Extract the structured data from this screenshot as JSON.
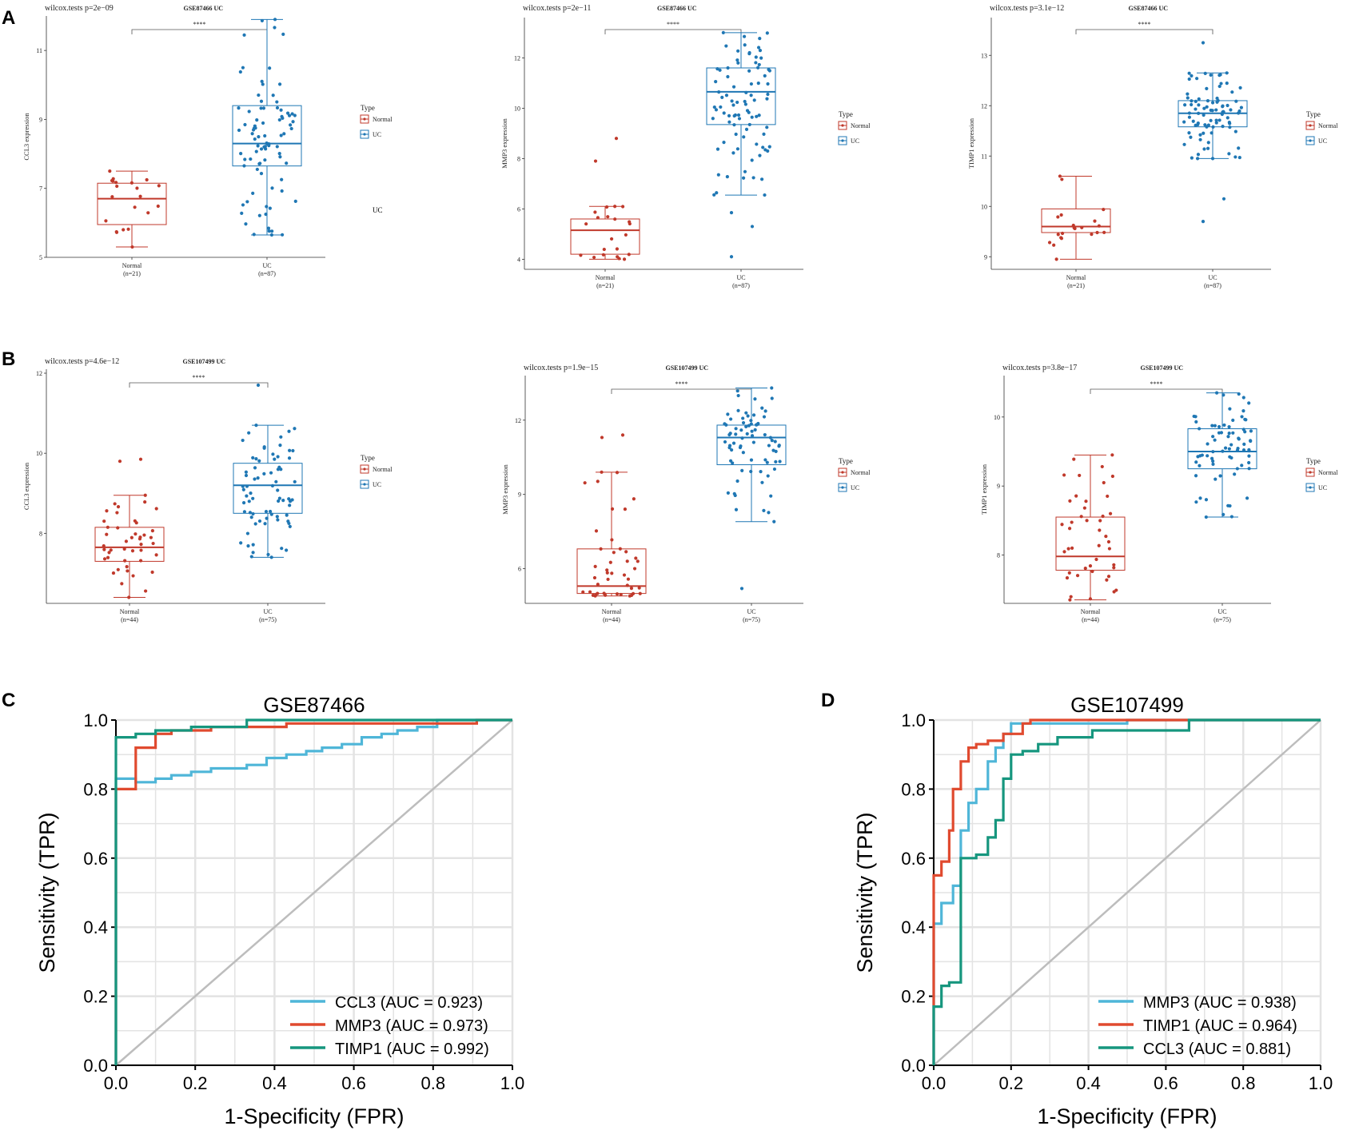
{
  "colors": {
    "normal": "#c0392b",
    "uc": "#1f77b4",
    "ccl3_roc": "#4fb6d8",
    "mmp3_roc": "#e04a2f",
    "timp1_roc": "#16967e",
    "diag": "#bdbdbd",
    "grid": "#e3e3e3"
  },
  "panel_labels": {
    "A": "A",
    "B": "B",
    "C": "C",
    "D": "D"
  },
  "legend": {
    "title": "Type",
    "normal": "Normal",
    "uc": "UC"
  },
  "stray_label": "UC",
  "chart_data": [
    {
      "id": "a1",
      "type": "box",
      "title": "GSE87466 UC",
      "test": "wilcox.tests p=2e−09",
      "signif": "****",
      "ylabel": "CCL3 expression",
      "ylim": [
        5,
        12
      ],
      "yticks": [
        5,
        7,
        9,
        11
      ],
      "groups": [
        {
          "name": "Normal",
          "n_label": "(n=21)",
          "n": 21,
          "q1": 5.95,
          "median": 6.7,
          "q3": 7.15,
          "whisker_low": 5.3,
          "whisker_high": 7.5
        },
        {
          "name": "UC",
          "n_label": "(n=87)",
          "n": 87,
          "q1": 7.65,
          "median": 8.3,
          "q3": 9.4,
          "whisker_low": 5.65,
          "whisker_high": 11.9
        }
      ]
    },
    {
      "id": "a2",
      "type": "box",
      "title": "GSE87466 UC",
      "test": "wilcox.tests p=2e−11",
      "signif": "****",
      "ylabel": "MMP3 expression",
      "ylim": [
        3.6,
        13.6
      ],
      "yticks": [
        4,
        6,
        8,
        10,
        12
      ],
      "groups": [
        {
          "name": "Normal",
          "n_label": "(n=21)",
          "n": 21,
          "q1": 4.2,
          "median": 5.15,
          "q3": 5.6,
          "whisker_low": 4.0,
          "whisker_high": 6.1,
          "outliers": [
            7.9,
            8.8
          ]
        },
        {
          "name": "UC",
          "n_label": "(n=87)",
          "n": 87,
          "q1": 9.35,
          "median": 10.65,
          "q3": 11.6,
          "whisker_low": 6.55,
          "whisker_high": 13.0,
          "outliers": [
            4.1,
            5.3,
            5.85
          ]
        }
      ]
    },
    {
      "id": "a3",
      "type": "box",
      "title": "GSE87466 UC",
      "test": "wilcox.tests p=3.1e−12",
      "signif": "****",
      "ylabel": "TIMP1 expression",
      "ylim": [
        8.75,
        13.75
      ],
      "yticks": [
        9,
        10,
        11,
        12,
        13
      ],
      "groups": [
        {
          "name": "Normal",
          "n_label": "(n=21)",
          "n": 21,
          "q1": 9.48,
          "median": 9.6,
          "q3": 9.95,
          "whisker_low": 8.95,
          "whisker_high": 10.6
        },
        {
          "name": "UC",
          "n_label": "(n=87)",
          "n": 87,
          "q1": 11.58,
          "median": 11.85,
          "q3": 12.1,
          "whisker_low": 10.95,
          "whisker_high": 12.65,
          "outliers": [
            9.7,
            10.15,
            13.25
          ]
        }
      ]
    },
    {
      "id": "b1",
      "type": "box",
      "title": "GSE107499 UC",
      "test": "wilcox.tests p=4.6e−12",
      "signif": "****",
      "ylabel": "CCL3 expression",
      "ylim": [
        6.25,
        12.1
      ],
      "yticks": [
        8,
        10,
        12
      ],
      "groups": [
        {
          "name": "Normal",
          "n_label": "(n=44)",
          "n": 44,
          "q1": 7.3,
          "median": 7.65,
          "q3": 8.15,
          "whisker_low": 6.4,
          "whisker_high": 8.95,
          "outliers": [
            9.8,
            9.85
          ]
        },
        {
          "name": "UC",
          "n_label": "(n=75)",
          "n": 75,
          "q1": 8.5,
          "median": 9.2,
          "q3": 9.75,
          "whisker_low": 7.4,
          "whisker_high": 10.7,
          "outliers": [
            11.7
          ]
        }
      ]
    },
    {
      "id": "b2",
      "type": "box",
      "title": "GSE107499 UC",
      "test": "wilcox.tests p=1.9e−15",
      "signif": "****",
      "ylabel": "MMP3 expression",
      "ylim": [
        4.6,
        13.8
      ],
      "yticks": [
        6,
        9,
        12
      ],
      "groups": [
        {
          "name": "Normal",
          "n_label": "(n=44)",
          "n": 44,
          "q1": 5.0,
          "median": 5.3,
          "q3": 6.8,
          "whisker_low": 4.9,
          "whisker_high": 9.9,
          "outliers": [
            11.3,
            11.4
          ]
        },
        {
          "name": "UC",
          "n_label": "(n=75)",
          "n": 75,
          "q1": 10.2,
          "median": 11.3,
          "q3": 11.8,
          "whisker_low": 7.9,
          "whisker_high": 13.3,
          "outliers": [
            5.2
          ]
        }
      ]
    },
    {
      "id": "b3",
      "type": "box",
      "title": "GSE107499 UC",
      "test": "wilcox.tests p=3.8e−17",
      "signif": "****",
      "ylabel": "TIMP1 expression",
      "ylim": [
        7.3,
        10.6
      ],
      "yticks": [
        8,
        9,
        10
      ],
      "groups": [
        {
          "name": "Normal",
          "n_label": "(n=44)",
          "n": 44,
          "q1": 7.78,
          "median": 7.98,
          "q3": 8.55,
          "whisker_low": 7.35,
          "whisker_high": 9.45
        },
        {
          "name": "UC",
          "n_label": "(n=75)",
          "n": 75,
          "q1": 9.25,
          "median": 9.5,
          "q3": 9.83,
          "whisker_low": 8.55,
          "whisker_high": 10.35
        }
      ]
    },
    {
      "id": "c",
      "type": "line",
      "title": "GSE87466",
      "xlabel": "1-Specificity (FPR)",
      "ylabel": "Sensitivity (TPR)",
      "xlim": [
        0,
        1
      ],
      "ylim": [
        0,
        1
      ],
      "ticks": [
        "0.0",
        "0.2",
        "0.4",
        "0.6",
        "0.8",
        "1.0"
      ],
      "series": [
        {
          "name": "CCL3 (AUC = 0.923)",
          "color_key": "ccl3_roc",
          "x": [
            0,
            0,
            0.05,
            0.05,
            0.1,
            0.1,
            0.14,
            0.14,
            0.19,
            0.19,
            0.24,
            0.24,
            0.33,
            0.33,
            0.38,
            0.38,
            0.43,
            0.43,
            0.48,
            0.48,
            0.52,
            0.52,
            0.57,
            0.57,
            0.62,
            0.62,
            0.67,
            0.67,
            0.71,
            0.71,
            0.76,
            0.76,
            0.81,
            0.81,
            1.0
          ],
          "y": [
            0,
            0.83,
            0.83,
            0.82,
            0.82,
            0.83,
            0.83,
            0.84,
            0.84,
            0.85,
            0.85,
            0.86,
            0.86,
            0.87,
            0.87,
            0.89,
            0.89,
            0.9,
            0.9,
            0.91,
            0.91,
            0.92,
            0.92,
            0.93,
            0.93,
            0.95,
            0.95,
            0.96,
            0.96,
            0.97,
            0.97,
            0.98,
            0.98,
            1.0,
            1.0
          ]
        },
        {
          "name": "MMP3 (AUC = 0.973)",
          "color_key": "mmp3_roc",
          "x": [
            0,
            0,
            0.05,
            0.05,
            0.1,
            0.1,
            0.14,
            0.14,
            0.24,
            0.24,
            0.43,
            0.43,
            0.91,
            0.91,
            1.0
          ],
          "y": [
            0,
            0.8,
            0.8,
            0.92,
            0.92,
            0.96,
            0.96,
            0.97,
            0.97,
            0.98,
            0.98,
            0.99,
            0.99,
            1.0,
            1.0
          ]
        },
        {
          "name": "TIMP1 (AUC = 0.992)",
          "color_key": "timp1_roc",
          "x": [
            0,
            0,
            0.05,
            0.05,
            0.1,
            0.1,
            0.19,
            0.19,
            0.33,
            0.33,
            1.0
          ],
          "y": [
            0,
            0.95,
            0.95,
            0.96,
            0.96,
            0.97,
            0.97,
            0.98,
            0.98,
            1.0,
            1.0
          ]
        }
      ]
    },
    {
      "id": "d",
      "type": "line",
      "title": "GSE107499",
      "xlabel": "1-Specificity (FPR)",
      "ylabel": "Sensitivity (TPR)",
      "xlim": [
        0,
        1
      ],
      "ylim": [
        0,
        1
      ],
      "ticks": [
        "0.0",
        "0.2",
        "0.4",
        "0.6",
        "0.8",
        "1.0"
      ],
      "series": [
        {
          "name": "MMP3 (AUC = 0.938)",
          "color_key": "ccl3_roc",
          "x": [
            0,
            0,
            0.02,
            0.02,
            0.05,
            0.05,
            0.07,
            0.07,
            0.09,
            0.09,
            0.11,
            0.11,
            0.14,
            0.14,
            0.16,
            0.16,
            0.18,
            0.18,
            0.2,
            0.2,
            0.25,
            0.25,
            0.5,
            0.5,
            1.0
          ],
          "y": [
            0,
            0.41,
            0.41,
            0.47,
            0.47,
            0.52,
            0.52,
            0.68,
            0.68,
            0.76,
            0.76,
            0.8,
            0.8,
            0.88,
            0.88,
            0.92,
            0.92,
            0.96,
            0.96,
            0.99,
            0.99,
            0.99,
            0.99,
            1.0,
            1.0
          ]
        },
        {
          "name": "TIMP1 (AUC = 0.964)",
          "color_key": "mmp3_roc",
          "x": [
            0,
            0,
            0.02,
            0.02,
            0.04,
            0.04,
            0.05,
            0.05,
            0.07,
            0.07,
            0.09,
            0.09,
            0.11,
            0.11,
            0.14,
            0.14,
            0.18,
            0.18,
            0.23,
            0.23,
            0.25,
            0.25,
            0.66,
            0.66,
            1.0
          ],
          "y": [
            0,
            0.55,
            0.55,
            0.59,
            0.59,
            0.68,
            0.68,
            0.8,
            0.8,
            0.88,
            0.88,
            0.92,
            0.92,
            0.93,
            0.93,
            0.94,
            0.94,
            0.96,
            0.96,
            0.99,
            0.99,
            1.0,
            1.0,
            1.0,
            1.0
          ]
        },
        {
          "name": "CCL3 (AUC = 0.881)",
          "color_key": "timp1_roc",
          "x": [
            0,
            0,
            0.02,
            0.02,
            0.04,
            0.04,
            0.07,
            0.07,
            0.11,
            0.11,
            0.14,
            0.14,
            0.16,
            0.16,
            0.18,
            0.18,
            0.2,
            0.2,
            0.23,
            0.23,
            0.27,
            0.27,
            0.32,
            0.32,
            0.41,
            0.41,
            0.66,
            0.66,
            1.0
          ],
          "y": [
            0,
            0.17,
            0.17,
            0.23,
            0.23,
            0.24,
            0.24,
            0.6,
            0.6,
            0.61,
            0.61,
            0.66,
            0.66,
            0.71,
            0.71,
            0.83,
            0.83,
            0.9,
            0.9,
            0.91,
            0.91,
            0.93,
            0.93,
            0.95,
            0.95,
            0.97,
            0.97,
            1.0,
            1.0
          ]
        }
      ]
    }
  ]
}
